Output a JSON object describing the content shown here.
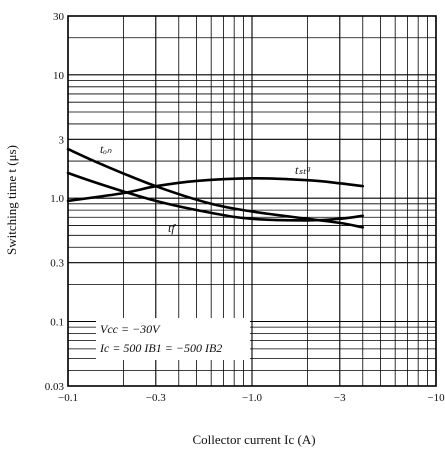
{
  "chart_data": {
    "type": "line",
    "xlabel": "Collector current  Ic (A)",
    "ylabel": "Switching time  t (μs)",
    "x_scale": "log",
    "y_scale": "log",
    "xlim": [
      -0.1,
      -10
    ],
    "ylim": [
      0.03,
      30
    ],
    "grid": true,
    "x_ticks": [
      {
        "value": -0.1,
        "label": "−0.1"
      },
      {
        "value": -0.3,
        "label": "−0.3"
      },
      {
        "value": -1.0,
        "label": "−1.0"
      },
      {
        "value": -3,
        "label": "−3"
      },
      {
        "value": -10,
        "label": "−10"
      }
    ],
    "y_ticks": [
      {
        "value": 30,
        "label": "30"
      },
      {
        "value": 10,
        "label": "10"
      },
      {
        "value": 3,
        "label": "3"
      },
      {
        "value": 1.0,
        "label": "1.0"
      },
      {
        "value": 0.3,
        "label": "0.3"
      },
      {
        "value": 0.1,
        "label": "0.1"
      },
      {
        "value": 0.03,
        "label": "0.03"
      }
    ],
    "series": [
      {
        "name": "ton",
        "label": "tₒₙ",
        "x": [
          -0.1,
          -0.15,
          -0.3,
          -0.6,
          -1.0,
          -2.0,
          -3.0,
          -4.0
        ],
        "y": [
          2.5,
          1.9,
          1.25,
          0.9,
          0.78,
          0.68,
          0.63,
          0.58
        ]
      },
      {
        "name": "tstg",
        "label": "tₛₜᵍ",
        "x": [
          -0.1,
          -0.2,
          -0.3,
          -0.5,
          -1.0,
          -2.0,
          -3.0,
          -4.0
        ],
        "y": [
          0.95,
          1.1,
          1.25,
          1.38,
          1.45,
          1.4,
          1.32,
          1.25
        ]
      },
      {
        "name": "tf",
        "label": "tf",
        "x": [
          -0.1,
          -0.15,
          -0.3,
          -0.6,
          -1.0,
          -2.0,
          -3.0,
          -4.0
        ],
        "y": [
          1.6,
          1.3,
          0.95,
          0.76,
          0.68,
          0.66,
          0.68,
          0.72
        ]
      }
    ],
    "annotation": {
      "line1": "Vcc = −30V",
      "line2": "Ic = 500 IB1 = −500 IB2"
    }
  }
}
